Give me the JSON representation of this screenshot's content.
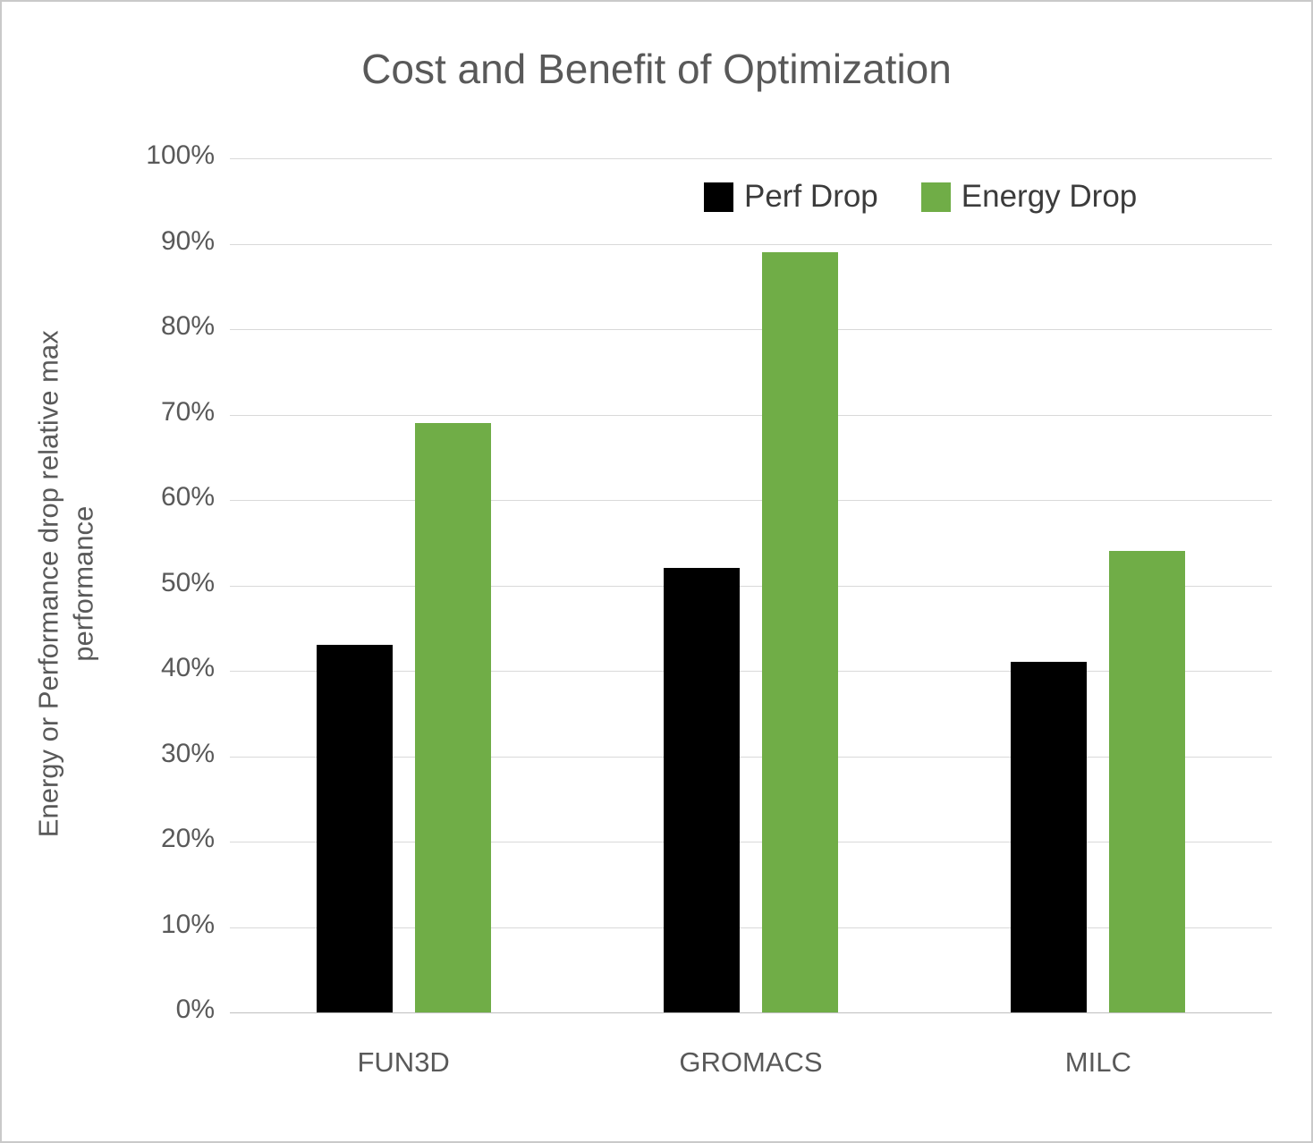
{
  "chart_data": {
    "type": "bar",
    "title": "Cost and Benefit of Optimization",
    "xlabel": "",
    "ylabel": "Energy or Performance drop relative max performance",
    "categories": [
      "FUN3D",
      "GROMACS",
      "MILC"
    ],
    "series": [
      {
        "name": "Perf Drop",
        "color": "#000000",
        "values": [
          43,
          52,
          41
        ]
      },
      {
        "name": "Energy Drop",
        "color": "#70ad47",
        "values": [
          69,
          89,
          54
        ]
      }
    ],
    "ylim": [
      0,
      100
    ],
    "ytick_values": [
      0,
      10,
      20,
      30,
      40,
      50,
      60,
      70,
      80,
      90,
      100
    ],
    "ytick_labels": [
      "0%",
      "10%",
      "20%",
      "30%",
      "40%",
      "50%",
      "60%",
      "70%",
      "80%",
      "90%",
      "100%"
    ],
    "grid": true,
    "legend_position": "top-right-inside"
  },
  "colors": {
    "grid": "#d9d9d9",
    "axis_line": "#bfbfbf",
    "axis_text": "#595959",
    "title_text": "#595959",
    "border": "#c9c9c9"
  }
}
